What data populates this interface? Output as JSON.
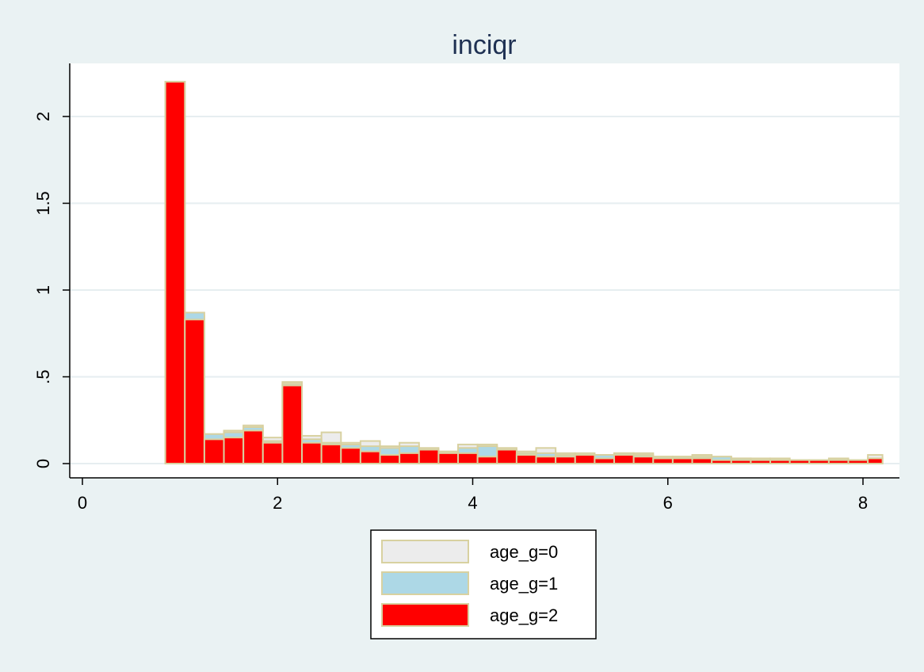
{
  "chart_data": {
    "type": "bar",
    "subtype": "overlaid-histogram",
    "title": "inciqr",
    "xlabel": "",
    "ylabel": "",
    "xlim": [
      -0.2,
      8.5
    ],
    "ylim": [
      -0.08,
      2.3
    ],
    "x_ticks": [
      0,
      2,
      4,
      6,
      8
    ],
    "x_tick_labels": [
      "0",
      "2",
      "4",
      "6",
      "8"
    ],
    "y_ticks": [
      0,
      0.5,
      1,
      1.5,
      2
    ],
    "y_tick_labels": [
      "0",
      ".5",
      "1",
      "1.5",
      "2"
    ],
    "grid": true,
    "legend_placement": "bottom-center",
    "bin_edges": [
      0.85,
      1.05,
      1.25,
      1.45,
      1.65,
      1.85,
      2.05,
      2.25,
      2.45,
      2.65,
      2.85,
      3.05,
      3.25,
      3.45,
      3.65,
      3.85,
      4.05,
      4.25,
      4.45,
      4.65,
      4.85,
      5.05,
      5.25,
      5.45,
      5.65,
      5.85,
      6.05,
      6.25,
      6.45,
      6.65,
      6.85,
      7.05,
      7.25,
      7.45,
      7.65,
      7.85,
      8.05,
      8.2
    ],
    "series": [
      {
        "name": "age_g=0",
        "color": "#ececec",
        "values": [
          2.2,
          0.85,
          0.17,
          0.19,
          0.22,
          0.15,
          0.47,
          0.16,
          0.18,
          0.12,
          0.13,
          0.1,
          0.12,
          0.09,
          0.07,
          0.11,
          0.11,
          0.09,
          0.07,
          0.09,
          0.06,
          0.06,
          0.05,
          0.06,
          0.06,
          0.04,
          0.04,
          0.05,
          0.04,
          0.03,
          0.03,
          0.03,
          0.02,
          0.02,
          0.03,
          0.02,
          0.05
        ]
      },
      {
        "name": "age_g=1",
        "color": "#add8e6",
        "values": [
          2.2,
          0.87,
          0.17,
          0.18,
          0.21,
          0.13,
          0.46,
          0.14,
          0.12,
          0.11,
          0.1,
          0.09,
          0.1,
          0.08,
          0.06,
          0.09,
          0.1,
          0.06,
          0.06,
          0.06,
          0.05,
          0.05,
          0.05,
          0.06,
          0.05,
          0.04,
          0.04,
          0.04,
          0.04,
          0.03,
          0.02,
          0.02,
          0.02,
          0.02,
          0.02,
          0.02,
          0.03
        ]
      },
      {
        "name": "age_g=2",
        "color": "#ff0000",
        "values": [
          2.2,
          0.83,
          0.14,
          0.15,
          0.19,
          0.12,
          0.45,
          0.12,
          0.11,
          0.09,
          0.07,
          0.05,
          0.06,
          0.08,
          0.06,
          0.06,
          0.04,
          0.08,
          0.05,
          0.04,
          0.04,
          0.05,
          0.03,
          0.05,
          0.04,
          0.03,
          0.03,
          0.03,
          0.02,
          0.02,
          0.02,
          0.02,
          0.02,
          0.02,
          0.02,
          0.02,
          0.03
        ]
      }
    ],
    "bar_edge_color": "#d8d1a0",
    "title_color": "#1f3153",
    "page_background": "#eaf2f3",
    "plot_background": "#ffffff",
    "grid_color": "#e6eef0"
  }
}
